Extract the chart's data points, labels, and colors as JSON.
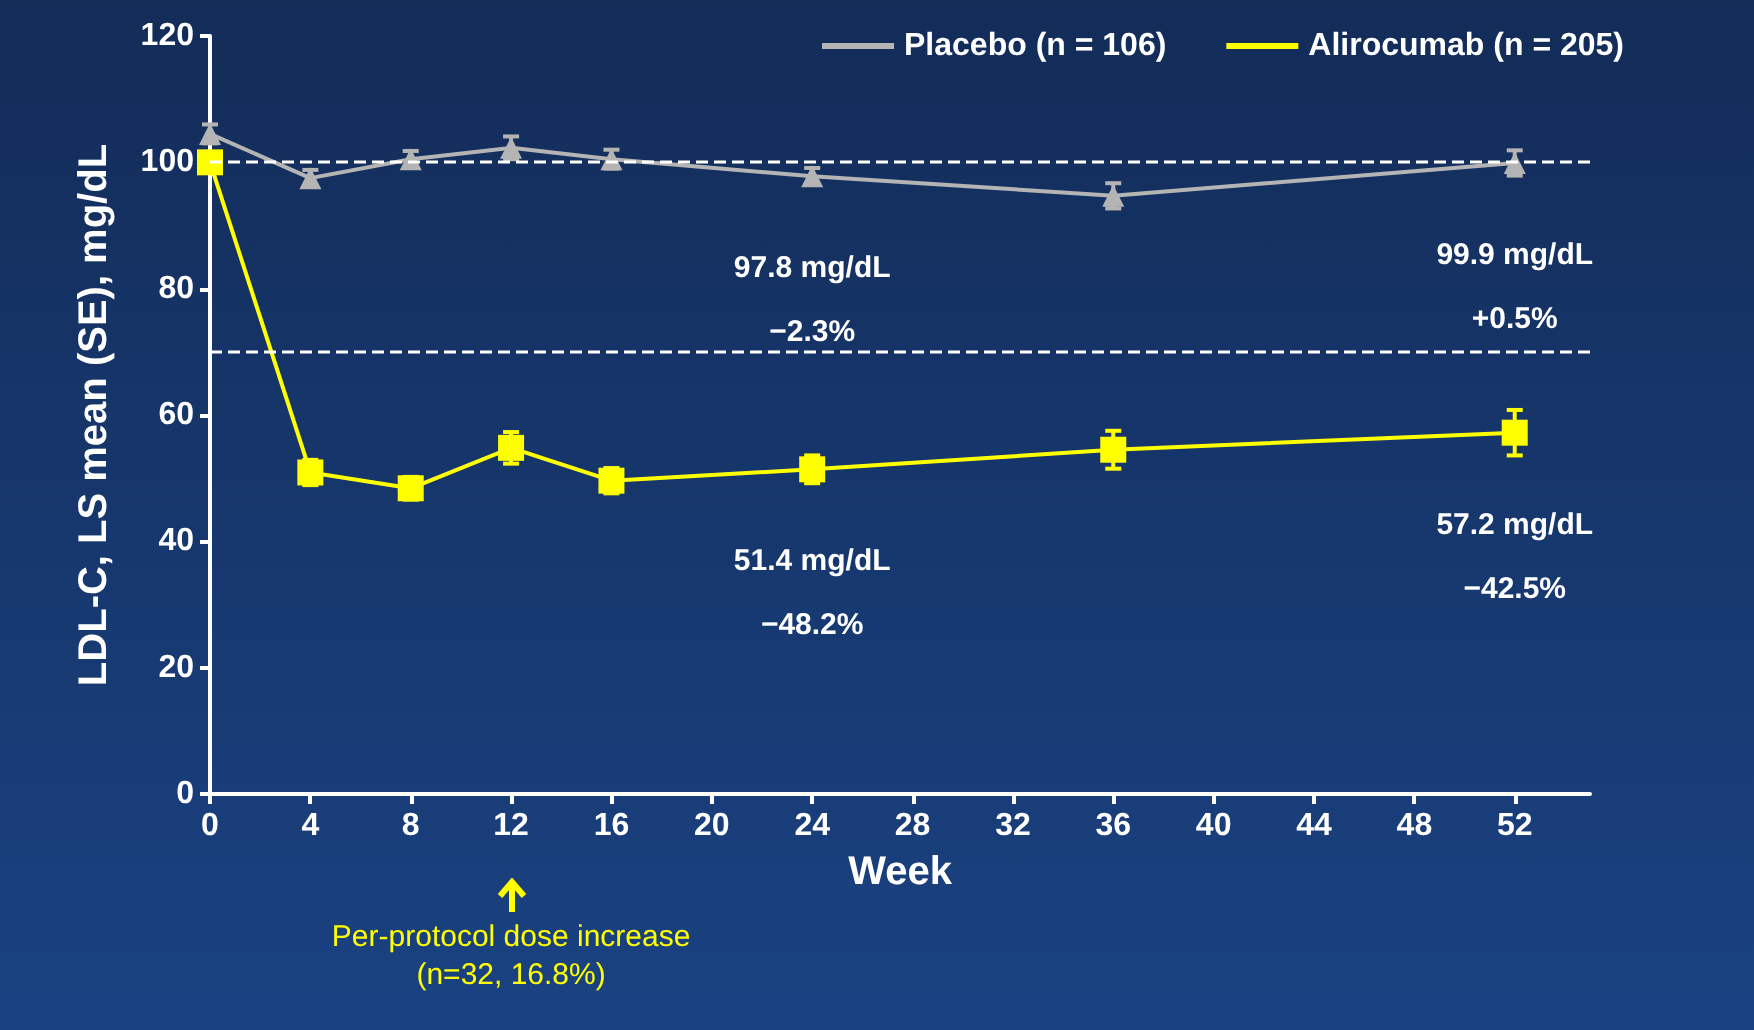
{
  "chart_data": {
    "type": "line",
    "xlabel": "Week",
    "ylabel": "LDL-C, LS mean (SE), mg/dL",
    "x": [
      0,
      4,
      8,
      12,
      16,
      24,
      36,
      52
    ],
    "xlim": [
      0,
      55
    ],
    "xticks": [
      0,
      4,
      8,
      12,
      16,
      20,
      24,
      28,
      32,
      36,
      40,
      44,
      48,
      52
    ],
    "ylim": [
      0,
      120
    ],
    "yticks": [
      0,
      20,
      40,
      60,
      80,
      100,
      120
    ],
    "grid": false,
    "legend": "top right",
    "line_style": "solid",
    "series": [
      {
        "name": "Placebo (n = 106)",
        "color": "#b4b4b4",
        "marker": "triangle",
        "values": [
          104.5,
          97.5,
          100.5,
          102.3,
          100.5,
          97.8,
          94.7,
          99.9
        ],
        "errors": [
          1.5,
          1.3,
          1.3,
          1.8,
          1.5,
          1.3,
          2,
          2
        ]
      },
      {
        "name": "Alirocumab (n = 205)",
        "color": "#ffff00",
        "marker": "square",
        "values": [
          100,
          50.9,
          48.4,
          54.8,
          49.6,
          51.4,
          54.5,
          57.2
        ],
        "errors": [
          null,
          2,
          1.8,
          2.5,
          2,
          2.2,
          3,
          3.6
        ]
      }
    ],
    "ref_lines": [
      {
        "axis": "y",
        "value": 100,
        "color": "#ffffff",
        "line_style": "dashed"
      },
      {
        "axis": "y",
        "value": 70,
        "color": "#ffffff",
        "line_style": "dashed"
      }
    ],
    "annotations": [
      {
        "text": "97.8 mg/dL\n−2.3%",
        "x": 24,
        "y": 97.8
      },
      {
        "text": "99.9 mg/dL\n+0.5%",
        "x": 52,
        "y": 99.9
      },
      {
        "text": "51.4 mg/dL\n−48.2%",
        "x": 24,
        "y": 51.4
      },
      {
        "text": "57.2 mg/dL\n−42.5%",
        "x": 52,
        "y": 57.2
      },
      {
        "text": "Per-protocol dose increase\n(n=32, 16.8%)",
        "x": 12
      }
    ]
  }
}
